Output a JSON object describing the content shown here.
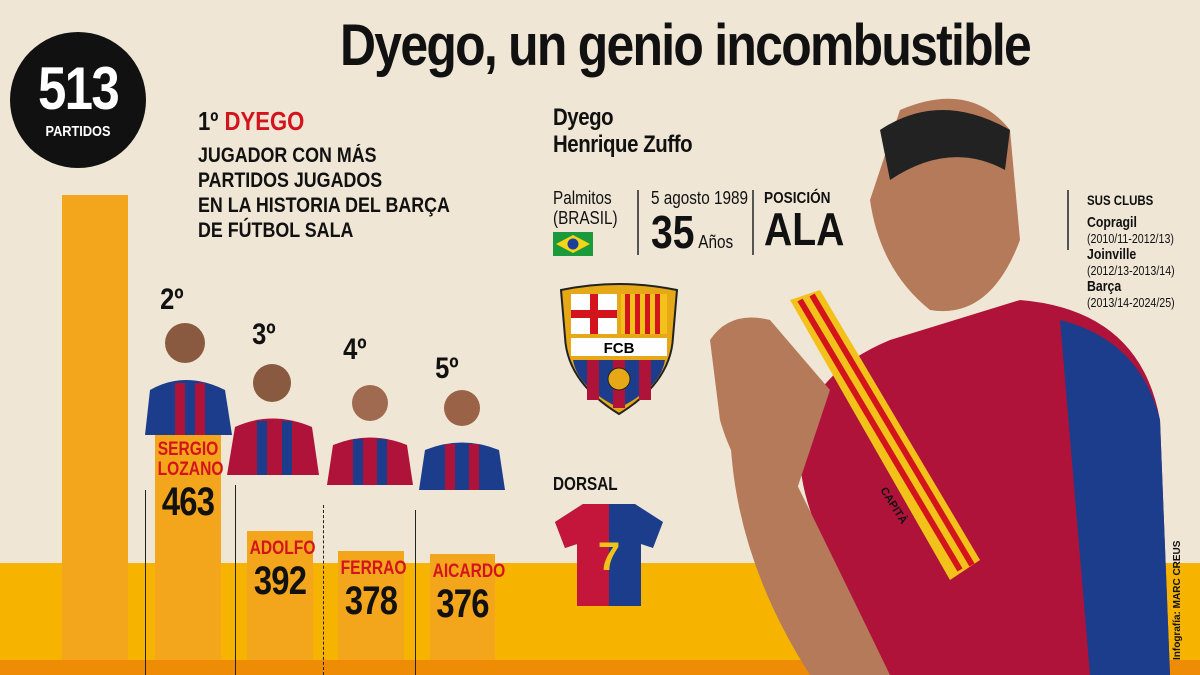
{
  "title": "Dyego, un genio incombustible",
  "leader": {
    "total": "513",
    "total_label": "PARTIDOS",
    "rank": "1º",
    "name": "DYEGO",
    "description": [
      "JUGADOR CON MÁS",
      "PARTIDOS JUGADOS",
      "EN LA HISTORIA DEL BARÇA",
      "DE FÚTBOL SALA"
    ]
  },
  "players": [
    {
      "rank": "2º",
      "name_lines": [
        "SERGIO",
        "LOZANO"
      ],
      "value": "463"
    },
    {
      "rank": "3º",
      "name_lines": [
        "ADOLFO"
      ],
      "value": "392"
    },
    {
      "rank": "4º",
      "name_lines": [
        "FERRAO"
      ],
      "value": "378"
    },
    {
      "rank": "5º",
      "name_lines": [
        "AICARDO"
      ],
      "value": "376"
    }
  ],
  "profile": {
    "first_name": "Dyego",
    "full_name": "Henrique Zuffo",
    "birthplace": "Palmitos",
    "country": "(BRASIL)",
    "birthdate": "5 agosto 1989",
    "age": "35",
    "age_unit": "Años",
    "position_label": "POSICIÓN",
    "position": "ALA",
    "crest_text": "FCB",
    "dorsal_label": "DORSAL",
    "dorsal": "7",
    "armband_text": "CAPITÀ",
    "clubs_label": "SUS CLUBS",
    "clubs": [
      {
        "name": "Copragil",
        "years": "(2010/11-2012/13)"
      },
      {
        "name": "Joinville",
        "years": "(2012/13-2013/14)"
      },
      {
        "name": "Barça",
        "years": "(2013/14-2024/25)"
      }
    ]
  },
  "credit": "Infografía: MARC CREUS",
  "colors": {
    "bar": "#f3a51b",
    "band": "#f6b400",
    "accent_red": "#d3141d",
    "background": "#efe6d6"
  },
  "chart_data": {
    "type": "bar",
    "categories": [
      "Dyego",
      "Sergio Lozano",
      "Adolfo",
      "Ferrao",
      "Aicardo"
    ],
    "values": [
      513,
      463,
      392,
      378,
      376
    ],
    "title": "",
    "xlabel": "",
    "ylabel": ""
  }
}
